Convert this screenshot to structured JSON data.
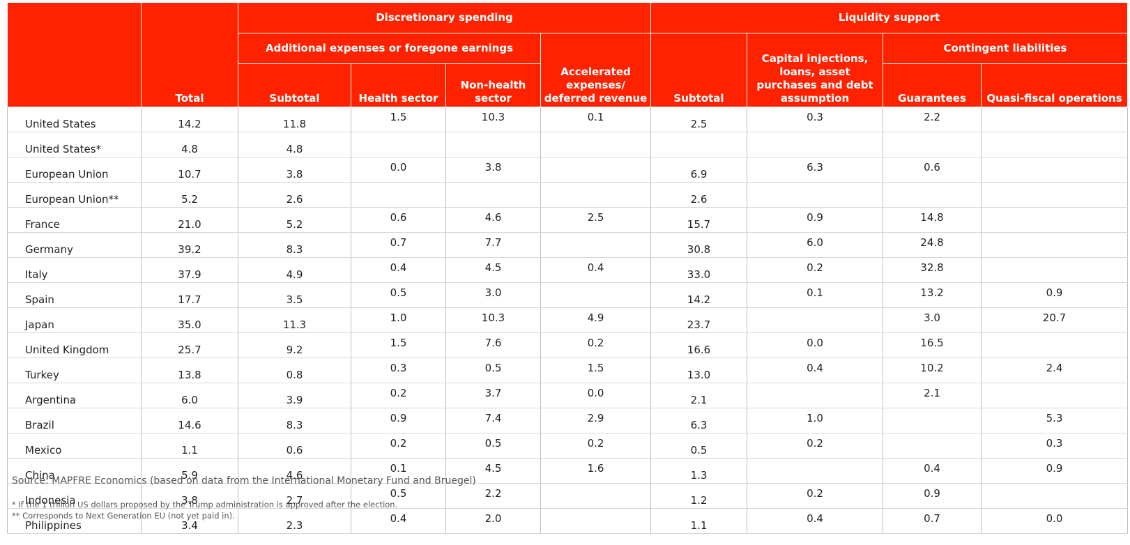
{
  "header": {
    "total": "Total",
    "discretionary_spending": "Discretionary spending",
    "liquidity_support": "Liquidity support",
    "additional_expenses": "Additional expenses or foregone earnings",
    "accelerated_expenses": "Accelerated expenses/ deferred revenue",
    "subtotal_disc": "Subtotal",
    "health_sector": "Health sector",
    "non_health_sector": "Non-health sector",
    "subtotal_liq": "Subtotal",
    "capital_injections": "Capital injections, loans, asset purchases and debt assumption",
    "contingent_liabilities": "Contingent liabilities",
    "guarantees": "Guarantees",
    "quasi_fiscal": "Quasi-fiscal operations"
  },
  "accent_color": "#ff2200",
  "rows": [
    [
      "United States",
      "14.2",
      "11.8",
      "1.5",
      "10.3",
      "0.1",
      "2.5",
      "0.3",
      "2.2",
      ""
    ],
    [
      "United States*",
      "4.8",
      "4.8",
      "",
      "",
      "",
      "",
      "",
      "",
      ""
    ],
    [
      "European Union",
      "10.7",
      "3.8",
      "0.0",
      "3.8",
      "",
      "6.9",
      "6.3",
      "0.6",
      ""
    ],
    [
      "European Union**",
      "5.2",
      "2.6",
      "",
      "",
      "",
      "2.6",
      "",
      "",
      ""
    ],
    [
      "France",
      "21.0",
      "5.2",
      "0.6",
      "4.6",
      "2.5",
      "15.7",
      "0.9",
      "14.8",
      ""
    ],
    [
      "Germany",
      "39.2",
      "8.3",
      "0.7",
      "7.7",
      "",
      "30.8",
      "6.0",
      "24.8",
      ""
    ],
    [
      "Italy",
      "37.9",
      "4.9",
      "0.4",
      "4.5",
      "0.4",
      "33.0",
      "0.2",
      "32.8",
      ""
    ],
    [
      "Spain",
      "17.7",
      "3.5",
      "0.5",
      "3.0",
      "",
      "14.2",
      "0.1",
      "13.2",
      "0.9"
    ],
    [
      "Japan",
      "35.0",
      "11.3",
      "1.0",
      "10.3",
      "4.9",
      "23.7",
      "",
      "3.0",
      "20.7"
    ],
    [
      "United Kingdom",
      "25.7",
      "9.2",
      "1.5",
      "7.6",
      "0.2",
      "16.6",
      "0.0",
      "16.5",
      ""
    ],
    [
      "Turkey",
      "13.8",
      "0.8",
      "0.3",
      "0.5",
      "1.5",
      "13.0",
      "0.4",
      "10.2",
      "2.4"
    ],
    [
      "Argentina",
      "6.0",
      "3.9",
      "0.2",
      "3.7",
      "0.0",
      "2.1",
      "",
      "2.1",
      ""
    ],
    [
      "Brazil",
      "14.6",
      "8.3",
      "0.9",
      "7.4",
      "2.9",
      "6.3",
      "1.0",
      "",
      "5.3"
    ],
    [
      "Mexico",
      "1.1",
      "0.6",
      "0.2",
      "0.5",
      "0.2",
      "0.5",
      "0.2",
      "",
      "0.3"
    ],
    [
      "China",
      "5.9",
      "4.6",
      "0.1",
      "4.5",
      "1.6",
      "1.3",
      "",
      "0.4",
      "0.9"
    ],
    [
      "Indonesia",
      "3.8",
      "2.7",
      "0.5",
      "2.2",
      "",
      "1.2",
      "0.2",
      "0.9",
      ""
    ],
    [
      "Philippines",
      "3.4",
      "2.3",
      "0.4",
      "2.0",
      "",
      "1.1",
      "0.4",
      "0.7",
      "0.0"
    ]
  ],
  "source": "Source: MAPFRE Economics (based on data from the International Monetary Fund and Bruegel)",
  "footnotes": [
    "* If the 1 trillion US dollars proposed by the Trump administration is approved after the election.",
    "** Corresponds to Next Generation EU (not yet paid in)."
  ]
}
